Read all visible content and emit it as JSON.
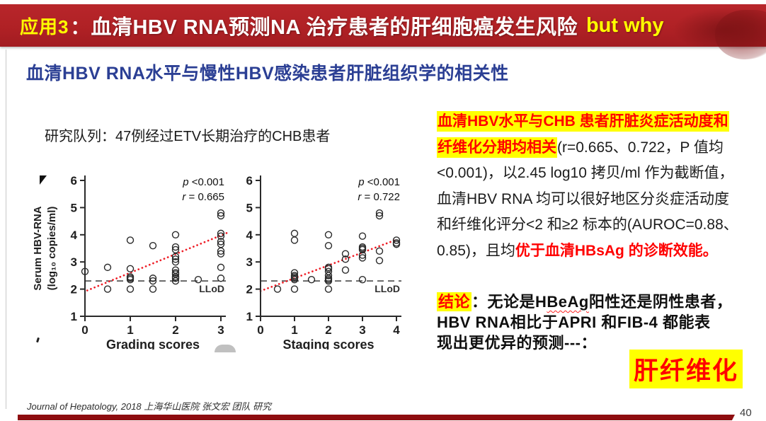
{
  "banner": {
    "tag": "应用3",
    "separator": "：",
    "title": "血清HBV RNA预测NA 治疗患者的肝细胞癌发生风险",
    "suffix": "but why",
    "bg_color": "#B02125",
    "accent_color": "#FFFF00"
  },
  "subtitle": "血清HBV RNA水平与慢性HBV感染患者肝脏组织学的相关性",
  "subtitle_color": "#2B3F94",
  "cohort_note": "研究队列：47例经过ETV长期治疗的CHB患者",
  "findings": {
    "lines": [
      [
        {
          "t": "血清HBV水平与CHB 患者肝脏炎症活动度和",
          "c": "hl"
        }
      ],
      [
        {
          "t": "纤维化分期均相关",
          "c": "hl"
        },
        {
          "t": "(r=0.665、0.722，P 值均",
          "c": "plain"
        }
      ],
      [
        {
          "t": "<0.001)，以2.45 log10 拷贝/ml 作为截断值，",
          "c": "plain"
        }
      ],
      [
        {
          "t": "血清HBV RNA 均可以很好地区分炎症活动度",
          "c": "plain"
        }
      ],
      [
        {
          "t": "和纤维化评分<2 和≥2 标本的(AUROC=0.88、",
          "c": "plain"
        }
      ],
      [
        {
          "t": "0.85)，且均",
          "c": "plain"
        },
        {
          "t": "优于血清HBsAg 的诊断效能。",
          "c": "redbold"
        }
      ]
    ]
  },
  "conclusion": {
    "lines": [
      [
        {
          "t": "结论",
          "c": "hl"
        },
        {
          "t": "：无论是H",
          "c": "bold"
        },
        {
          "t": "BeAg",
          "c": "boldwavy"
        },
        {
          "t": "阳性还是阴性患者，",
          "c": "bold"
        }
      ],
      [
        {
          "t": "HBV RNA相比于APRI 和FIB-4 都能表",
          "c": "bold"
        }
      ],
      [
        {
          "t": "现出更优异的预测---：",
          "c": "bold"
        }
      ]
    ],
    "highlight_box": "肝纤维化"
  },
  "footer": {
    "citation": "Journal of Hepatology, 2018 上海华山医院 张文宏 团队 研究",
    "page_number": "40"
  },
  "chart_data": [
    {
      "type": "scatter",
      "xlabel": "Grading scores",
      "ylabel": "Serum HBV-RNA",
      "ylabel2": "(log₁₀ copies/ml)",
      "xlim": [
        0,
        3
      ],
      "ylim": [
        1,
        6
      ],
      "xticks": [
        0,
        1,
        2,
        3
      ],
      "yticks": [
        1,
        2,
        3,
        4,
        5,
        6
      ],
      "annotation": [
        [
          "p",
          " <0.001"
        ],
        [
          "r",
          " = 0.665"
        ]
      ],
      "llod": {
        "y": 2.3,
        "label": "LLoD"
      },
      "trend": {
        "x1": 0.05,
        "y1": 1.95,
        "x2": 3.18,
        "y2": 4.1,
        "color": "#EE1C25"
      },
      "point_color": "#2a2a2a",
      "points": [
        [
          0,
          2.65
        ],
        [
          0.5,
          2.8
        ],
        [
          0.5,
          2.0
        ],
        [
          1,
          3.8
        ],
        [
          1,
          2.75
        ],
        [
          1,
          2.45
        ],
        [
          1,
          2.4
        ],
        [
          1,
          2.35
        ],
        [
          1,
          2.0
        ],
        [
          1.5,
          3.6
        ],
        [
          1.5,
          2.4
        ],
        [
          1.5,
          2.3
        ],
        [
          1.5,
          2.0
        ],
        [
          2,
          4.0
        ],
        [
          2,
          3.55
        ],
        [
          2,
          3.45
        ],
        [
          2,
          3.2
        ],
        [
          2,
          3.1
        ],
        [
          2,
          3.0
        ],
        [
          2,
          2.7
        ],
        [
          2,
          2.6
        ],
        [
          2,
          2.55
        ],
        [
          2,
          2.45
        ],
        [
          2,
          2.4
        ],
        [
          2,
          2.3
        ],
        [
          2.5,
          2.35
        ],
        [
          3,
          4.8
        ],
        [
          3,
          4.7
        ],
        [
          3,
          4.05
        ],
        [
          3,
          3.95
        ],
        [
          3,
          3.75
        ],
        [
          3,
          3.65
        ],
        [
          3,
          3.4
        ],
        [
          3,
          3.3
        ],
        [
          3,
          2.8
        ],
        [
          3,
          2.4
        ]
      ]
    },
    {
      "type": "scatter",
      "xlabel": "Staging scores",
      "ylabel": "",
      "ylabel2": "",
      "xlim": [
        0,
        4
      ],
      "ylim": [
        1,
        6
      ],
      "xticks": [
        0,
        1,
        2,
        3,
        4
      ],
      "yticks": [
        1,
        2,
        3,
        4,
        5,
        6
      ],
      "annotation": [
        [
          "p",
          " <0.001"
        ],
        [
          "r",
          " = 0.722"
        ]
      ],
      "llod": {
        "y": 2.3,
        "label": "LLoD"
      },
      "trend": {
        "x1": 0.0,
        "y1": 1.93,
        "x2": 4.0,
        "y2": 3.82,
        "color": "#EE1C25"
      },
      "point_color": "#2a2a2a",
      "points": [
        [
          0.5,
          2.0
        ],
        [
          1,
          4.05
        ],
        [
          1,
          3.8
        ],
        [
          1,
          2.6
        ],
        [
          1,
          2.5
        ],
        [
          1,
          2.45
        ],
        [
          1,
          2.4
        ],
        [
          1,
          2.35
        ],
        [
          1,
          2.0
        ],
        [
          1.5,
          2.35
        ],
        [
          2,
          4.0
        ],
        [
          2,
          3.6
        ],
        [
          2,
          2.8
        ],
        [
          2,
          2.75
        ],
        [
          2,
          2.65
        ],
        [
          2,
          2.5
        ],
        [
          2,
          2.4
        ],
        [
          2,
          2.35
        ],
        [
          2,
          2.3
        ],
        [
          2,
          2.0
        ],
        [
          2.5,
          3.3
        ],
        [
          2.5,
          3.1
        ],
        [
          2.5,
          2.7
        ],
        [
          3,
          3.95
        ],
        [
          3,
          3.55
        ],
        [
          3,
          3.5
        ],
        [
          3,
          3.45
        ],
        [
          3,
          3.25
        ],
        [
          3,
          3.15
        ],
        [
          3,
          2.35
        ],
        [
          3.5,
          4.8
        ],
        [
          3.5,
          4.7
        ],
        [
          3.5,
          3.4
        ],
        [
          3.5,
          3.05
        ],
        [
          4,
          3.8
        ],
        [
          4,
          3.7
        ],
        [
          4,
          3.65
        ]
      ]
    }
  ]
}
